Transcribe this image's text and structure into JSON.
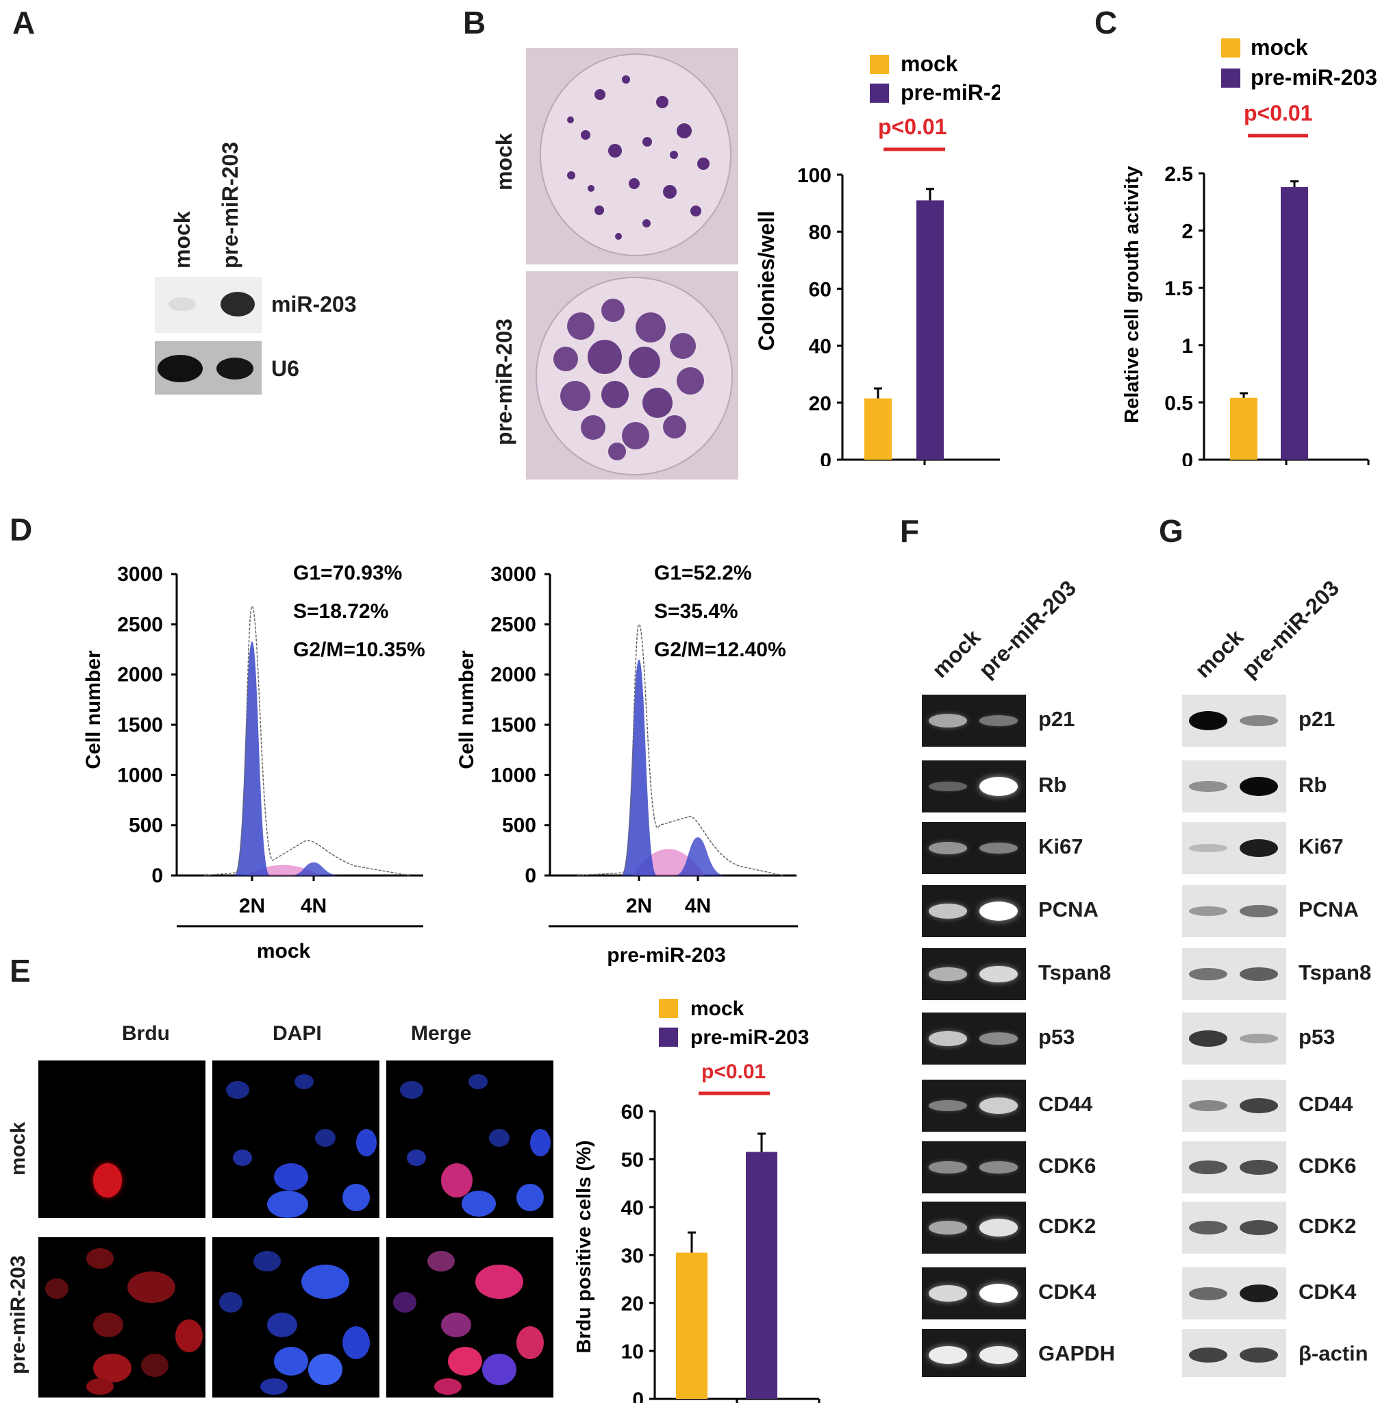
{
  "panels": {
    "A": "A",
    "B": "B",
    "C": "C",
    "D": "D",
    "E": "E",
    "F": "F",
    "G": "G"
  },
  "legend": {
    "mock": "mock",
    "pre": "pre-miR-203"
  },
  "colors": {
    "mock": "#f7b520",
    "pre": "#4e2a7d",
    "pval": "#e0262a",
    "bars_axis": "#000000"
  },
  "panelA": {
    "lanes": [
      "mock",
      "pre-miR-203"
    ],
    "bands": [
      "miR-203",
      "U6"
    ]
  },
  "panelB": {
    "dish_labels": [
      "mock",
      "pre-miR-203"
    ]
  },
  "panelE": {
    "columns": [
      "Brdu",
      "DAPI",
      "Merge"
    ],
    "rows": [
      "mock",
      "pre-miR-203"
    ]
  },
  "panelF": {
    "lanes": [
      "mock",
      "pre-miR-203"
    ],
    "genes": [
      "p21",
      "Rb",
      "Ki67",
      "PCNA",
      "Tspan8",
      "p53",
      "CD44",
      "CDK6",
      "CDK2",
      "CDK4",
      "GAPDH"
    ]
  },
  "panelG": {
    "lanes": [
      "mock",
      "pre-miR-203"
    ],
    "genes": [
      "p21",
      "Rb",
      "Ki67",
      "PCNA",
      "Tspan8",
      "p53",
      "CD44",
      "CDK6",
      "CDK2",
      "CDK4",
      "β-actin"
    ]
  },
  "chart_data": [
    {
      "panel": "B",
      "type": "bar",
      "categories": [
        "mock",
        "pre-miR-203"
      ],
      "values": [
        21.5,
        91
      ],
      "errors": [
        3.5,
        4
      ],
      "ylabel": "Colonies/well",
      "ylim": [
        0,
        100
      ],
      "yticks": [
        0,
        20,
        40,
        60,
        80,
        100
      ],
      "annotation": "p<0.01"
    },
    {
      "panel": "C",
      "type": "bar",
      "categories": [
        "mock",
        "pre-miR-203"
      ],
      "values": [
        0.54,
        2.38
      ],
      "errors": [
        0.04,
        0.05
      ],
      "ylabel": "Relative cell grouth activity",
      "ylim": [
        0,
        2.5
      ],
      "yticks": [
        "0",
        "0.5",
        "1",
        "1.5",
        "2",
        "2.5"
      ],
      "annotation": "p<0.01"
    },
    {
      "panel": "D-left",
      "type": "area",
      "ylabel": "Cell number",
      "ylim": [
        0,
        3000
      ],
      "yticks": [
        0,
        500,
        1000,
        1500,
        2000,
        2500,
        3000
      ],
      "xticks": [
        "2N",
        "4N"
      ],
      "xlabel": "mock",
      "stats": [
        "G1=70.93%",
        "S=18.72%",
        "G2/M=10.35%"
      ]
    },
    {
      "panel": "D-right",
      "type": "area",
      "ylabel": "Cell number",
      "ylim": [
        0,
        3000
      ],
      "yticks": [
        0,
        500,
        1000,
        1500,
        2000,
        2500,
        3000
      ],
      "xticks": [
        "2N",
        "4N"
      ],
      "xlabel": "pre-miR-203",
      "stats": [
        "G1=52.2%",
        "S=35.4%",
        "G2/M=12.40%"
      ]
    },
    {
      "panel": "E",
      "type": "bar",
      "categories": [
        "mock",
        "pre-miR-203"
      ],
      "values": [
        30.5,
        51.5
      ],
      "errors": [
        4.2,
        3.8
      ],
      "ylabel": "Brdu positive cells (%)",
      "ylim": [
        0,
        60
      ],
      "yticks": [
        0,
        10,
        20,
        30,
        40,
        50,
        60
      ],
      "annotation": "p<0.01"
    }
  ]
}
